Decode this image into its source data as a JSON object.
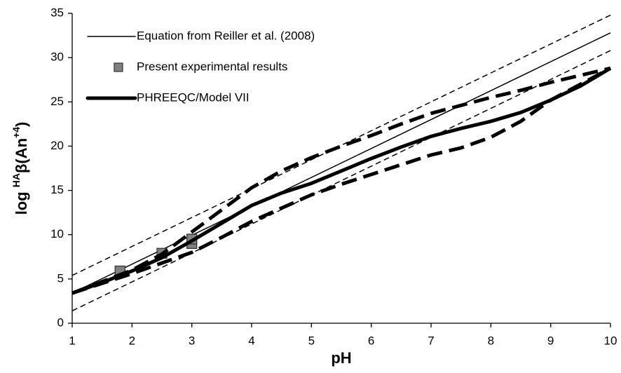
{
  "chart_data": {
    "type": "line",
    "xlabel": "pH",
    "ylabel_parts": [
      {
        "text": "log "
      },
      {
        "text": "HA",
        "sup": true
      },
      {
        "text": "β(An"
      },
      {
        "text": "+4",
        "sup": true
      },
      {
        "text": ")"
      }
    ],
    "xlim": [
      1,
      10
    ],
    "xticks": [
      1,
      2,
      3,
      4,
      5,
      6,
      7,
      8,
      9,
      10
    ],
    "ylim": [
      0,
      35
    ],
    "yticks": [
      0,
      5,
      10,
      15,
      20,
      25,
      30,
      35
    ],
    "grid": false,
    "legend": "upper-left",
    "series": [
      {
        "name": "Equation from Reiller et al. (2008)",
        "color": "#000000",
        "style": "solid",
        "weight": "thin",
        "x": [
          1,
          10
        ],
        "values": [
          3.4,
          32.8
        ]
      },
      {
        "name": "Present experimental results",
        "color": "#808080",
        "marker": "square",
        "x": [
          1.8,
          2.5,
          3,
          3
        ],
        "values": [
          5.9,
          7.9,
          9.0,
          9.5
        ]
      },
      {
        "name": "PHREEQC/Model VII",
        "color": "#000000",
        "style": "solid",
        "weight": "thick",
        "x": [
          1,
          1.5,
          2,
          2.5,
          3,
          3.5,
          4,
          4.5,
          5,
          5.5,
          6,
          6.5,
          7,
          7.5,
          8,
          8.5,
          9,
          9.5,
          10
        ],
        "values": [
          3.4,
          4.6,
          5.9,
          7.4,
          9.3,
          11.3,
          13.3,
          14.7,
          15.8,
          17.2,
          18.6,
          19.9,
          21.1,
          22.0,
          22.8,
          23.8,
          25.2,
          26.8,
          28.8
        ]
      },
      {
        "color": "#000000",
        "style": "dashed",
        "weight": "thin",
        "x": [
          1,
          10
        ],
        "values": [
          5.4,
          34.8
        ]
      },
      {
        "color": "#000000",
        "style": "dashed",
        "weight": "thin",
        "x": [
          1,
          10
        ],
        "values": [
          1.4,
          30.8
        ]
      },
      {
        "color": "#000000",
        "style": "dashed",
        "weight": "thick",
        "x": [
          1,
          2,
          2.5,
          3,
          3.5,
          4,
          4.5,
          5,
          5.5,
          6,
          6.5,
          7,
          7.5,
          8,
          8.5,
          9,
          9.5,
          10
        ],
        "values": [
          3.4,
          6.0,
          7.8,
          10.3,
          12.8,
          15.3,
          17.2,
          18.7,
          20.0,
          21.2,
          22.5,
          23.7,
          24.6,
          25.5,
          26.3,
          27.2,
          28.0,
          28.8
        ]
      },
      {
        "color": "#000000",
        "style": "dashed",
        "weight": "thick",
        "x": [
          1,
          2,
          2.5,
          3,
          3.5,
          4,
          4.5,
          5,
          5.5,
          6,
          6.5,
          7,
          7.5,
          8,
          8.5,
          9,
          9.5,
          10
        ],
        "values": [
          3.4,
          5.6,
          6.8,
          8.0,
          9.7,
          11.5,
          13.0,
          14.5,
          15.7,
          16.8,
          17.9,
          19.0,
          19.8,
          21.0,
          22.8,
          25.2,
          27.0,
          28.8
        ]
      }
    ]
  }
}
